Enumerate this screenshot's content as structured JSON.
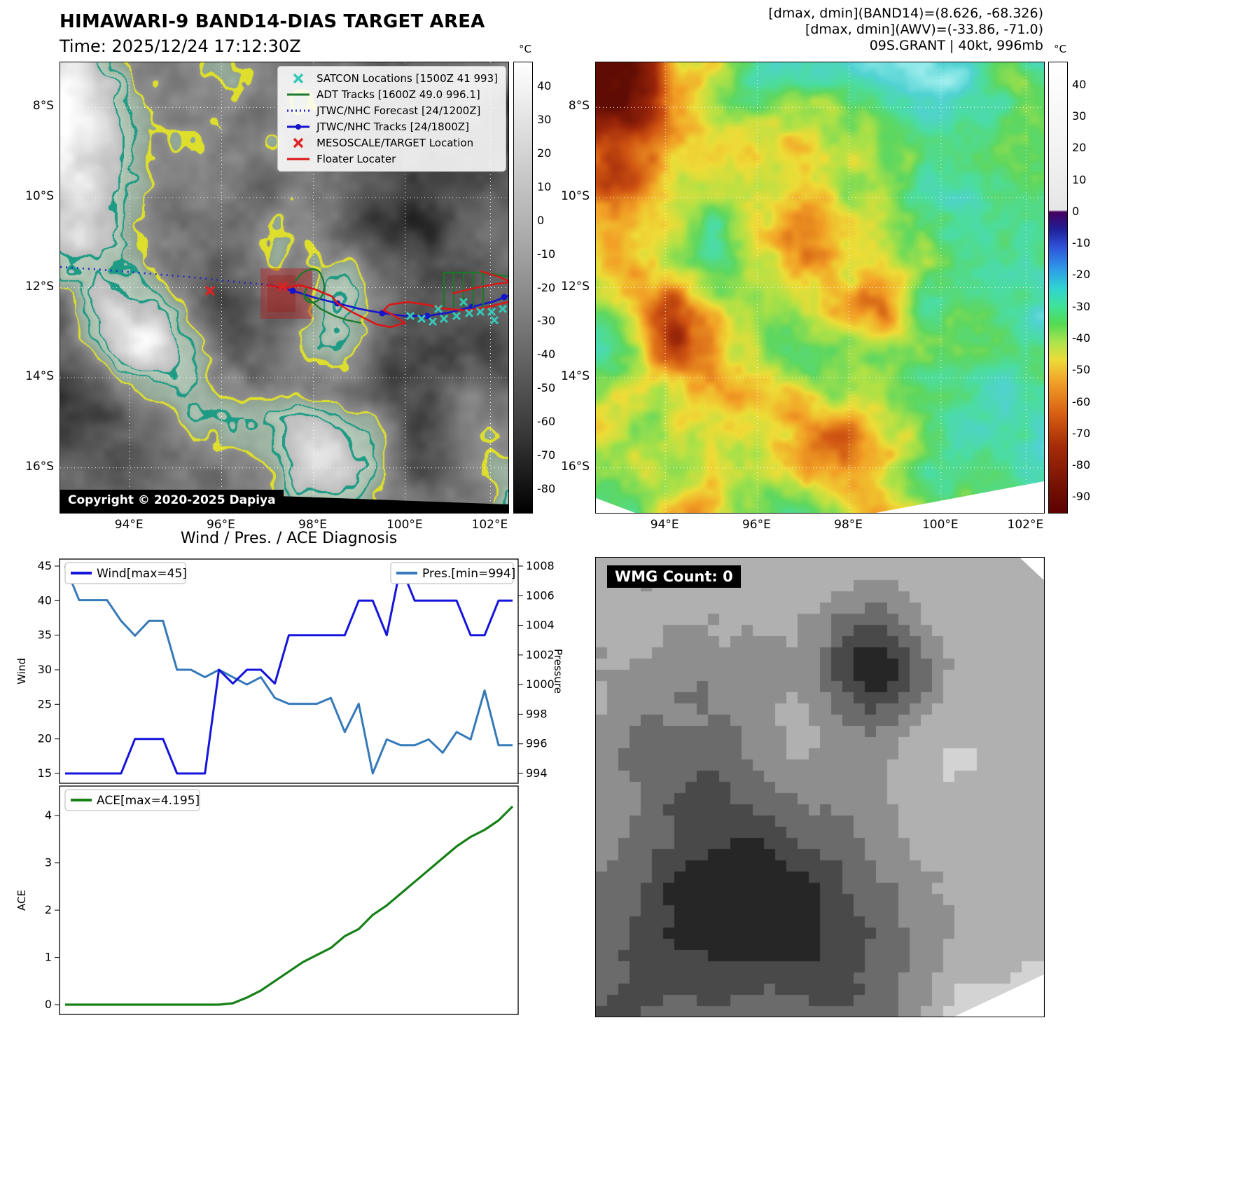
{
  "header": {
    "title": "HIMAWARI-9 BAND14-DIAS TARGET AREA",
    "time": "Time: 2025/12/24 17:12:30Z",
    "right1": "[dmax, dmin](BAND14)=(8.626, -68.326)",
    "right2": "[dmax, dmin](AWV)=(-33.86, -71.0)",
    "right3": "09S.GRANT | 40kt, 996mb"
  },
  "left_map": {
    "legend": [
      {
        "label": "SATCON Locations [1500Z 41 993]",
        "marker": "x",
        "color": "#35c8b8"
      },
      {
        "label": "ADT Tracks [1600Z 49.0 996.1]",
        "marker": "line",
        "color": "#1a7a2a"
      },
      {
        "label": "JTWC/NHC Forecast [24/1200Z]",
        "marker": "dotted",
        "color": "#2323cc"
      },
      {
        "label": "JTWC/NHC Tracks [24/1800Z]",
        "marker": "line-dot",
        "color": "#1414cc"
      },
      {
        "label": "MESOSCALE/TARGET Location",
        "marker": "x",
        "color": "#dd2222"
      },
      {
        "label": "Floater Locater",
        "marker": "line",
        "color": "#dd1515"
      }
    ],
    "lat_ticks": [
      "8°S",
      "10°S",
      "12°S",
      "14°S",
      "16°S"
    ],
    "lon_ticks": [
      "94°E",
      "96°E",
      "98°E",
      "100°E",
      "102°E"
    ],
    "copyright": "Copyright © 2020-2025 Dapiya",
    "colorbar": {
      "unit": "°C",
      "ticks": [
        40,
        30,
        20,
        10,
        0,
        -10,
        -20,
        -30,
        -40,
        -50,
        -60,
        -70,
        -80
      ]
    }
  },
  "right_map": {
    "lat_ticks": [
      "8°S",
      "10°S",
      "12°S",
      "14°S",
      "16°S"
    ],
    "lon_ticks": [
      "94°E",
      "96°E",
      "98°E",
      "100°E",
      "102°E"
    ],
    "colorbar": {
      "unit": "°C",
      "ticks": [
        40,
        30,
        20,
        10,
        0,
        -10,
        -20,
        -30,
        -40,
        -50,
        -60,
        -70,
        -80,
        -90
      ]
    }
  },
  "wmg": {
    "count_label": "WMG Count: 0"
  },
  "chart_data": [
    {
      "type": "line",
      "title": "Wind / Pres. / ACE Diagnosis",
      "ylabel_left": "Wind",
      "ylabel_right": "Pressure",
      "ylim_left": [
        15,
        45
      ],
      "ylim_right": [
        994,
        1008
      ],
      "yticks_left": [
        45,
        40,
        35,
        30,
        25,
        20,
        15
      ],
      "yticks_right": [
        1008,
        1006,
        1004,
        1002,
        1000,
        998,
        996,
        994
      ],
      "grid": false,
      "legend_position": "top",
      "series": [
        {
          "name": "Wind[max=45]",
          "axis": "left",
          "color": "#1414dc",
          "values": [
            15,
            15,
            15,
            15,
            15,
            20,
            20,
            20,
            15,
            15,
            15,
            30,
            28,
            30,
            30,
            28,
            35,
            35,
            35,
            35,
            35,
            40,
            40,
            35,
            45,
            40,
            40,
            40,
            40,
            35,
            35,
            40,
            40
          ]
        },
        {
          "name": "Pres.[min=994]",
          "axis": "right",
          "color": "#3579b8",
          "values": [
            1008,
            1005.7,
            1005.7,
            1005.7,
            1004.3,
            1003.3,
            1004.3,
            1004.3,
            1001,
            1001,
            1000.5,
            1001,
            1000.5,
            1000,
            1000.5,
            999.1,
            998.7,
            998.7,
            998.7,
            999.1,
            996.8,
            998.7,
            994,
            996.3,
            995.9,
            995.9,
            996.3,
            995.4,
            996.8,
            996.3,
            999.6,
            995.9,
            995.9
          ]
        }
      ]
    },
    {
      "type": "line",
      "ylabel": "ACE",
      "ylim": [
        0,
        4.4
      ],
      "yticks": [
        0,
        1,
        2,
        3,
        4
      ],
      "grid": false,
      "series": [
        {
          "name": "ACE[max=4.195]",
          "color": "#178017",
          "values": [
            0,
            0,
            0,
            0,
            0,
            0,
            0,
            0,
            0,
            0,
            0,
            0,
            0.03,
            0.15,
            0.3,
            0.5,
            0.7,
            0.9,
            1.05,
            1.2,
            1.45,
            1.6,
            1.9,
            2.1,
            2.35,
            2.6,
            2.85,
            3.1,
            3.35,
            3.55,
            3.7,
            3.9,
            4.195
          ]
        }
      ]
    }
  ]
}
